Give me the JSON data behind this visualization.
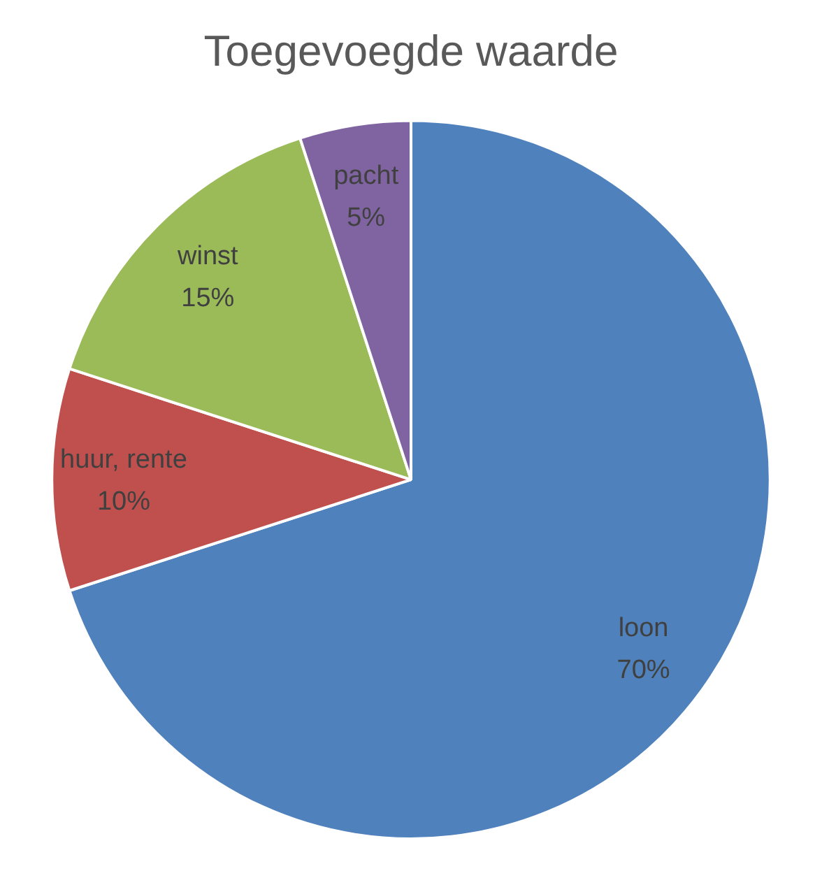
{
  "chart_data": {
    "type": "pie",
    "title": "Toegevoegde waarde",
    "categories": [
      "loon",
      "huur, rente",
      "winst",
      "pacht"
    ],
    "values": [
      70,
      10,
      15,
      5
    ],
    "value_labels": [
      "70%",
      "10%",
      "15%",
      "5%"
    ],
    "colors": [
      "#4f81bd",
      "#c0504d",
      "#9bbb59",
      "#8064a2"
    ],
    "legend": false
  }
}
